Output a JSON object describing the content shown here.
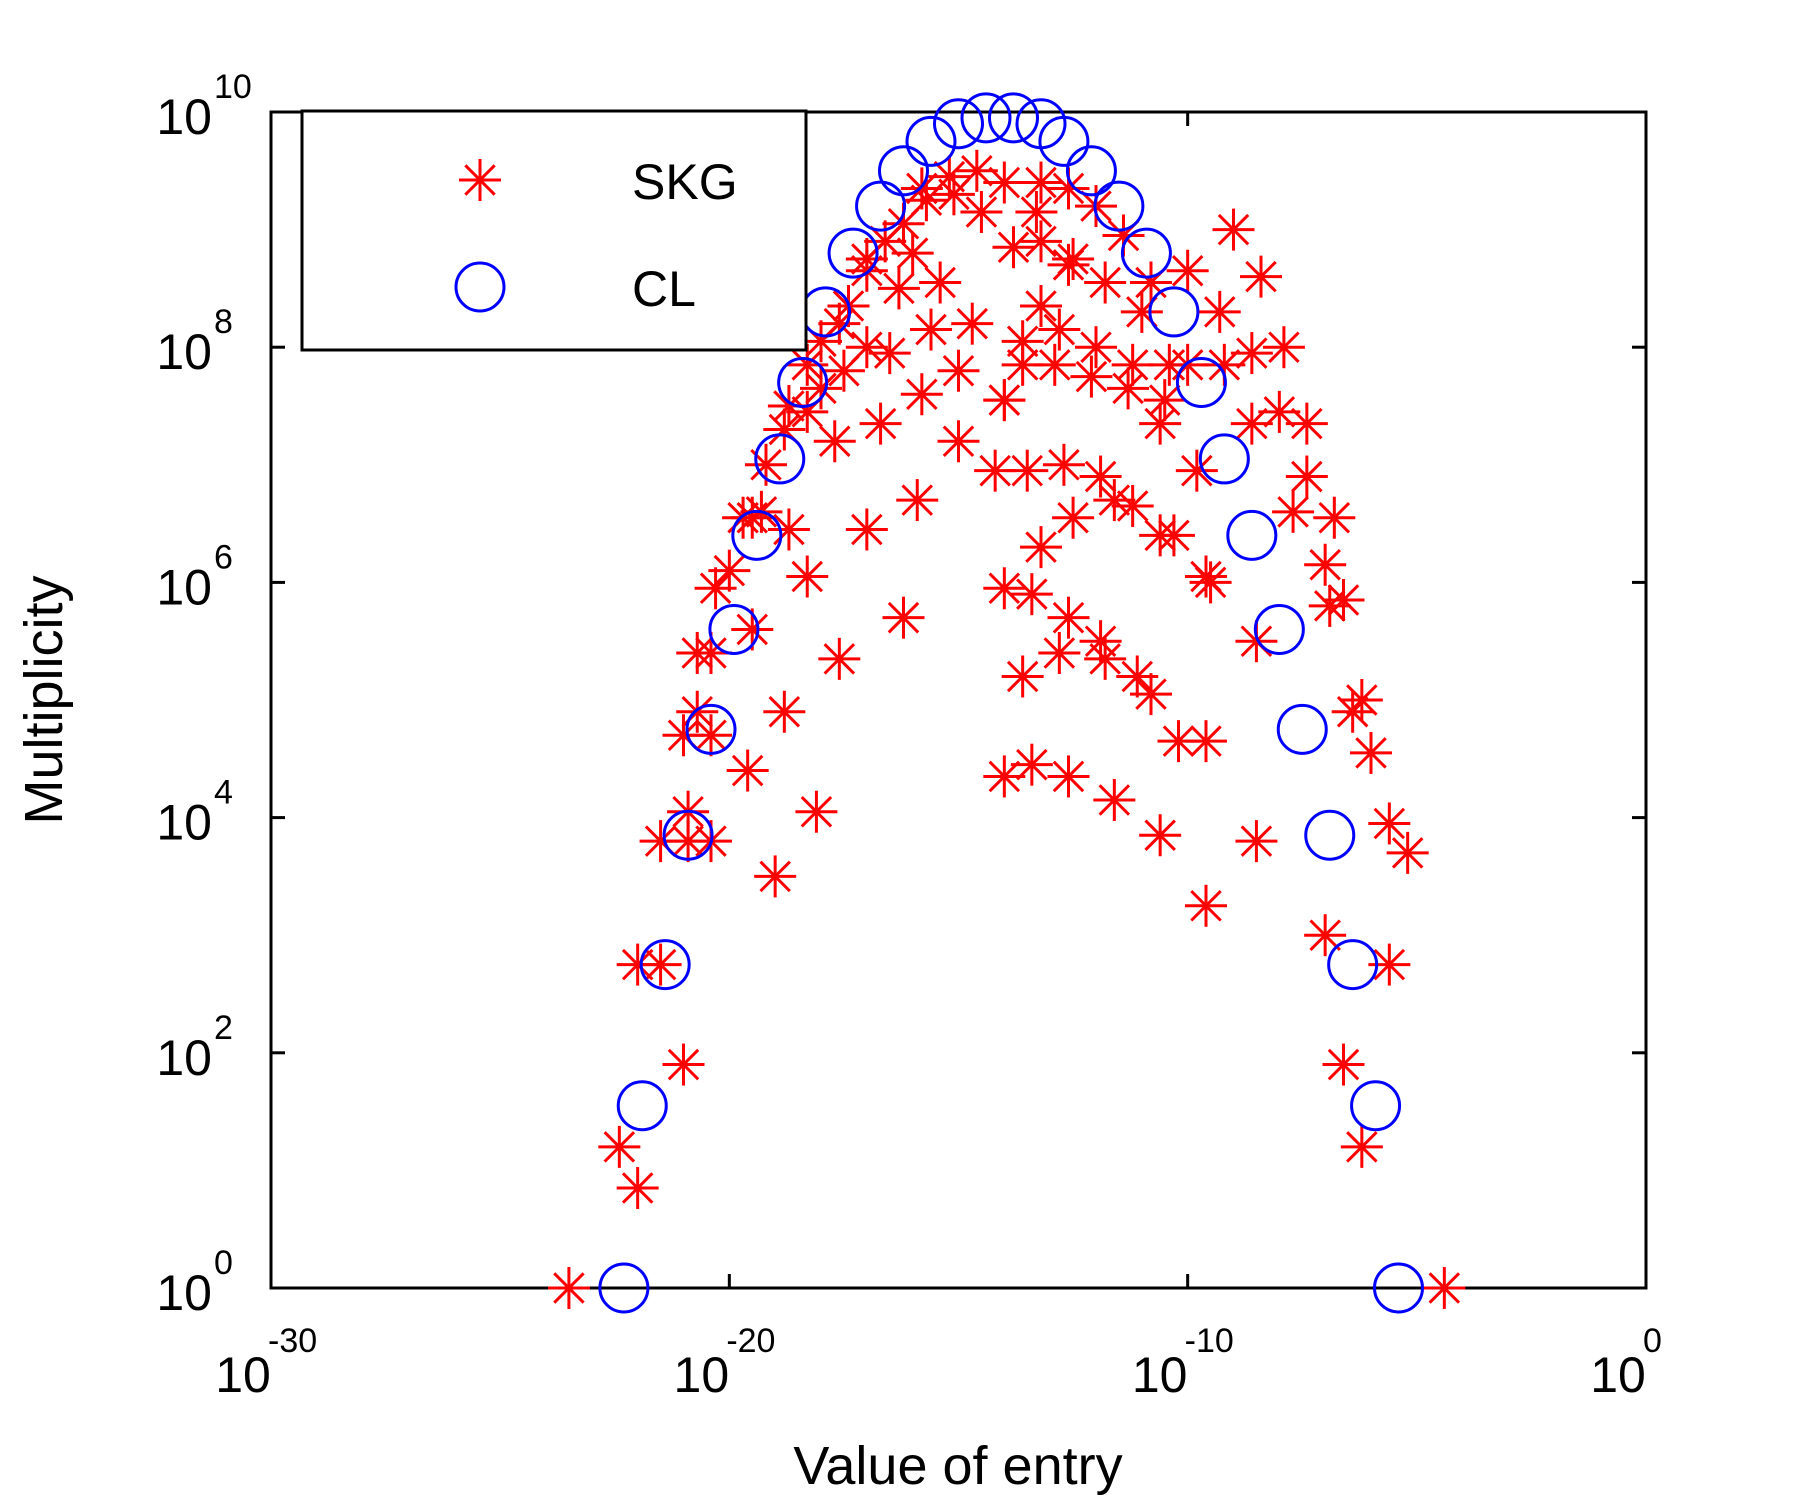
{
  "chart_data": {
    "type": "scatter",
    "title": "",
    "xlabel": "Value of entry",
    "ylabel": "Multiplicity",
    "xscale": "log",
    "yscale": "log",
    "xlim_exp": [
      -30,
      0
    ],
    "ylim_exp": [
      0,
      10
    ],
    "x_ticks": [
      {
        "base": "10",
        "exp": "-30",
        "value_exp": -30
      },
      {
        "base": "10",
        "exp": "-20",
        "value_exp": -20
      },
      {
        "base": "10",
        "exp": "-10",
        "value_exp": -10
      },
      {
        "base": "10",
        "exp": "0",
        "value_exp": 0
      }
    ],
    "y_ticks": [
      {
        "base": "10",
        "exp": "0",
        "value_exp": 0
      },
      {
        "base": "10",
        "exp": "2",
        "value_exp": 2
      },
      {
        "base": "10",
        "exp": "4",
        "value_exp": 4
      },
      {
        "base": "10",
        "exp": "6",
        "value_exp": 6
      },
      {
        "base": "10",
        "exp": "8",
        "value_exp": 8
      },
      {
        "base": "10",
        "exp": "10",
        "value_exp": 10
      }
    ],
    "grid": false,
    "legend_position": "top-left",
    "series": [
      {
        "name": "SKG",
        "marker": "asterisk",
        "color": "#ff0000",
        "points_log10": [
          [
            -23.5,
            0
          ],
          [
            -22.4,
            1.2
          ],
          [
            -22.0,
            0.85
          ],
          [
            -22.0,
            2.75
          ],
          [
            -21.5,
            2.75
          ],
          [
            -21.0,
            1.9
          ],
          [
            -21.5,
            3.8
          ],
          [
            -20.9,
            3.8
          ],
          [
            -20.9,
            4.05
          ],
          [
            -20.4,
            3.8
          ],
          [
            -21.0,
            4.7
          ],
          [
            -20.7,
            4.9
          ],
          [
            -20.4,
            4.7
          ],
          [
            -20.4,
            5.4
          ],
          [
            -19.6,
            4.4
          ],
          [
            -19.0,
            3.5
          ],
          [
            -20.7,
            5.4
          ],
          [
            -20.3,
            5.95
          ],
          [
            -20.0,
            6.1
          ],
          [
            -19.5,
            5.6
          ],
          [
            -18.8,
            4.9
          ],
          [
            -18.1,
            4.05
          ],
          [
            -19.7,
            6.55
          ],
          [
            -19.5,
            6.55
          ],
          [
            -19.3,
            6.6
          ],
          [
            -18.7,
            6.45
          ],
          [
            -18.3,
            6.05
          ],
          [
            -17.6,
            5.35
          ],
          [
            -19.2,
            7.0
          ],
          [
            -18.8,
            7.3
          ],
          [
            -18.3,
            7.45
          ],
          [
            -17.7,
            7.2
          ],
          [
            -17.0,
            6.45
          ],
          [
            -16.2,
            5.7
          ],
          [
            -18.7,
            7.5
          ],
          [
            -18.3,
            7.85
          ],
          [
            -18.0,
            7.65
          ],
          [
            -17.5,
            7.8
          ],
          [
            -16.7,
            7.35
          ],
          [
            -15.9,
            6.7
          ],
          [
            -18.0,
            8.05
          ],
          [
            -17.6,
            8.2
          ],
          [
            -17.0,
            8.0
          ],
          [
            -16.5,
            7.95
          ],
          [
            -15.8,
            7.6
          ],
          [
            -15.0,
            7.2
          ],
          [
            -17.4,
            8.35
          ],
          [
            -17.0,
            8.65
          ],
          [
            -16.3,
            8.5
          ],
          [
            -15.6,
            8.15
          ],
          [
            -15.0,
            7.8
          ],
          [
            -14.2,
            6.95
          ],
          [
            -17.0,
            8.75
          ],
          [
            -16.6,
            8.9
          ],
          [
            -16.0,
            8.8
          ],
          [
            -15.4,
            8.55
          ],
          [
            -14.7,
            8.2
          ],
          [
            -14.0,
            7.55
          ],
          [
            -16.2,
            9.05
          ],
          [
            -15.7,
            9.25
          ],
          [
            -15.1,
            9.3
          ],
          [
            -14.5,
            9.15
          ],
          [
            -13.8,
            8.85
          ],
          [
            -13.2,
            8.35
          ],
          [
            -15.8,
            9.35
          ],
          [
            -15.2,
            9.45
          ],
          [
            -14.6,
            9.5
          ],
          [
            -14.0,
            9.4
          ],
          [
            -13.3,
            9.15
          ],
          [
            -12.6,
            8.7
          ],
          [
            -13.2,
            9.4
          ],
          [
            -12.6,
            9.35
          ],
          [
            -12.0,
            9.2
          ],
          [
            -11.4,
            8.95
          ],
          [
            -10.8,
            8.55
          ],
          [
            -13.2,
            8.9
          ],
          [
            -12.5,
            8.75
          ],
          [
            -11.8,
            8.55
          ],
          [
            -11.0,
            8.3
          ],
          [
            -10.4,
            7.85
          ],
          [
            -13.6,
            8.05
          ],
          [
            -12.9,
            7.85
          ],
          [
            -12.1,
            7.75
          ],
          [
            -11.3,
            7.65
          ],
          [
            -10.6,
            7.35
          ],
          [
            -9.8,
            6.95
          ],
          [
            -13.5,
            6.95
          ],
          [
            -12.7,
            7.0
          ],
          [
            -11.9,
            6.9
          ],
          [
            -11.2,
            6.65
          ],
          [
            -10.3,
            6.4
          ],
          [
            -9.6,
            6.05
          ],
          [
            -14.0,
            7.55
          ],
          [
            -13.6,
            7.85
          ],
          [
            -12.8,
            8.15
          ],
          [
            -12.0,
            8.0
          ],
          [
            -11.2,
            7.85
          ],
          [
            -10.5,
            7.55
          ],
          [
            -14.0,
            5.95
          ],
          [
            -13.4,
            5.9
          ],
          [
            -12.6,
            5.7
          ],
          [
            -11.9,
            5.5
          ],
          [
            -11.1,
            5.2
          ],
          [
            -10.2,
            4.65
          ],
          [
            -14.0,
            4.35
          ],
          [
            -13.4,
            4.45
          ],
          [
            -12.6,
            4.35
          ],
          [
            -11.6,
            4.15
          ],
          [
            -10.6,
            3.85
          ],
          [
            -9.6,
            3.25
          ],
          [
            -13.2,
            6.3
          ],
          [
            -12.5,
            6.55
          ],
          [
            -11.6,
            6.7
          ],
          [
            -10.6,
            6.4
          ],
          [
            -9.5,
            6.0
          ],
          [
            -8.5,
            5.5
          ],
          [
            -13.6,
            5.2
          ],
          [
            -12.8,
            5.4
          ],
          [
            -11.8,
            5.35
          ],
          [
            -10.8,
            5.05
          ],
          [
            -9.6,
            4.65
          ],
          [
            -8.5,
            3.8
          ],
          [
            -10.0,
            8.65
          ],
          [
            -9.3,
            8.3
          ],
          [
            -8.6,
            7.95
          ],
          [
            -8.0,
            7.45
          ],
          [
            -7.4,
            6.9
          ],
          [
            -10.0,
            7.85
          ],
          [
            -9.2,
            7.85
          ],
          [
            -8.6,
            7.35
          ],
          [
            -7.7,
            6.6
          ],
          [
            -6.9,
            5.8
          ],
          [
            -6.4,
            4.9
          ],
          [
            -9.0,
            9.0
          ],
          [
            -8.4,
            8.6
          ],
          [
            -7.9,
            8.0
          ],
          [
            -7.4,
            7.35
          ],
          [
            -6.8,
            6.55
          ],
          [
            -7.0,
            6.15
          ],
          [
            -6.6,
            5.85
          ],
          [
            -6.2,
            5.0
          ],
          [
            -6.0,
            4.55
          ],
          [
            -5.6,
            3.95
          ],
          [
            -7.0,
            3.0
          ],
          [
            -6.6,
            1.9
          ],
          [
            -6.2,
            1.2
          ],
          [
            -5.6,
            2.75
          ],
          [
            -5.2,
            3.7
          ],
          [
            -4.4,
            0
          ]
        ]
      },
      {
        "name": "CL",
        "marker": "circle",
        "color": "#0000ff",
        "points_log10": [
          [
            -22.3,
            0
          ],
          [
            -21.9,
            1.55
          ],
          [
            -21.4,
            2.75
          ],
          [
            -20.9,
            3.85
          ],
          [
            -20.4,
            4.75
          ],
          [
            -19.9,
            5.6
          ],
          [
            -19.4,
            6.4
          ],
          [
            -18.9,
            7.05
          ],
          [
            -18.4,
            7.7
          ],
          [
            -17.9,
            8.3
          ],
          [
            -17.3,
            8.8
          ],
          [
            -16.7,
            9.2
          ],
          [
            -16.2,
            9.5
          ],
          [
            -15.6,
            9.75
          ],
          [
            -15.0,
            9.9
          ],
          [
            -14.4,
            9.95
          ],
          [
            -13.8,
            9.95
          ],
          [
            -13.2,
            9.9
          ],
          [
            -12.7,
            9.75
          ],
          [
            -12.1,
            9.5
          ],
          [
            -11.5,
            9.2
          ],
          [
            -10.9,
            8.8
          ],
          [
            -10.3,
            8.3
          ],
          [
            -9.7,
            7.7
          ],
          [
            -9.2,
            7.05
          ],
          [
            -8.6,
            6.4
          ],
          [
            -8.0,
            5.6
          ],
          [
            -7.5,
            4.75
          ],
          [
            -6.9,
            3.85
          ],
          [
            -6.4,
            2.75
          ],
          [
            -5.9,
            1.55
          ],
          [
            -5.4,
            0
          ]
        ]
      }
    ]
  }
}
